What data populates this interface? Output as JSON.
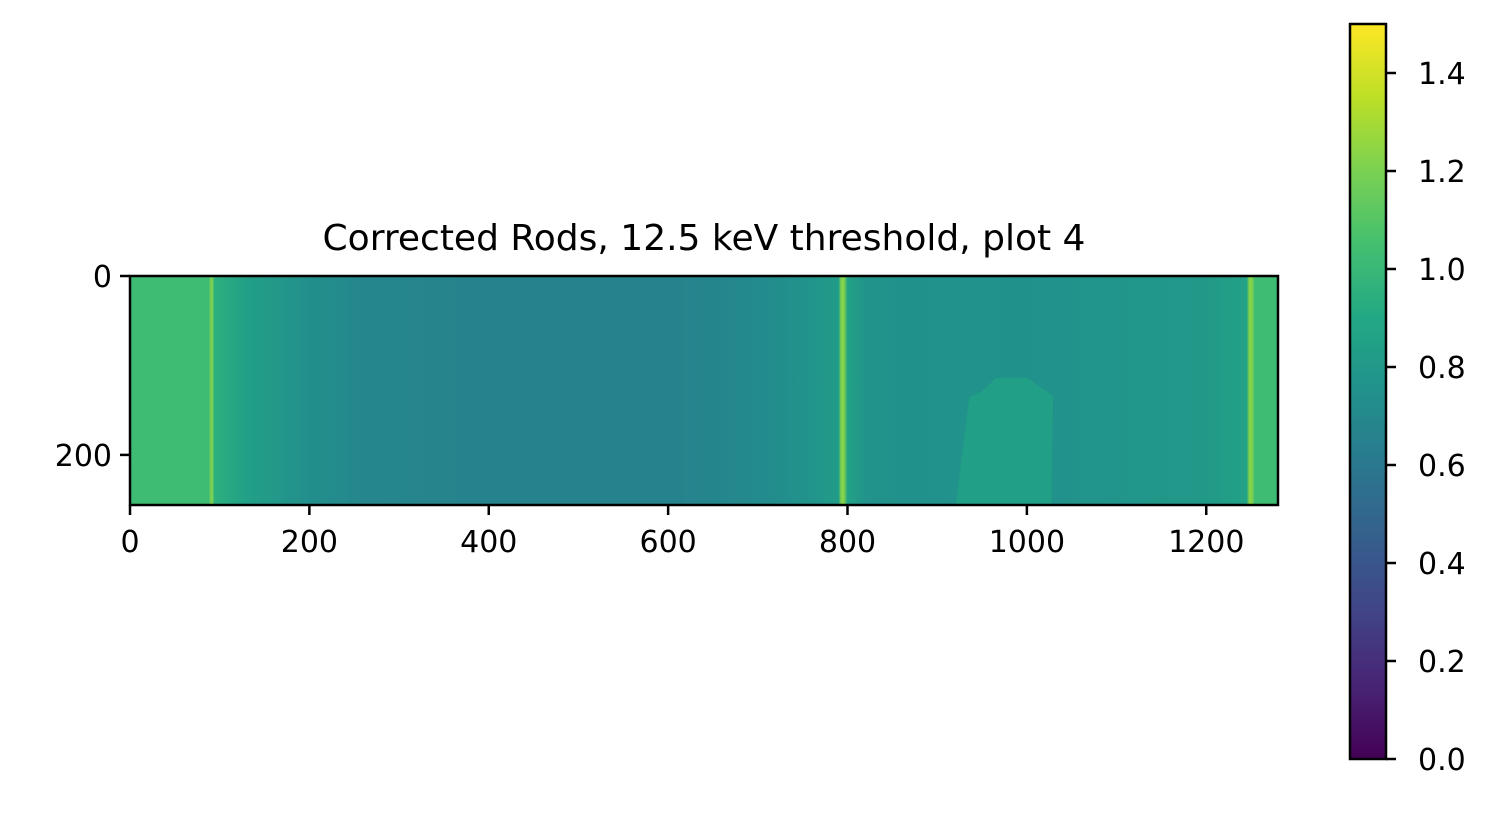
{
  "chart_data": {
    "type": "heatmap",
    "title": "Corrected Rods, 12.5 keV threshold, plot 4",
    "xlabel": "",
    "ylabel": "",
    "xlim": [
      0,
      1280
    ],
    "ylim": [
      256,
      0
    ],
    "x_ticks": [
      0,
      200,
      400,
      600,
      800,
      1000,
      1200
    ],
    "y_ticks": [
      0,
      200
    ],
    "colorbar": {
      "colormap": "viridis",
      "range": [
        0.0,
        1.5
      ],
      "ticks": [
        "0.0",
        "0.2",
        "0.4",
        "0.6",
        "0.8",
        "1.0",
        "1.2",
        "1.4"
      ],
      "tick_values": [
        0.0,
        0.2,
        0.4,
        0.6,
        0.8,
        1.0,
        1.2,
        1.4
      ]
    },
    "column_profile": [
      {
        "x": 0,
        "value": 1.03
      },
      {
        "x": 88,
        "value": 1.03
      },
      {
        "x": 90,
        "value": 1.2
      },
      {
        "x": 92,
        "value": 1.2
      },
      {
        "x": 94,
        "value": 0.95
      },
      {
        "x": 130,
        "value": 0.85
      },
      {
        "x": 200,
        "value": 0.74
      },
      {
        "x": 260,
        "value": 0.69
      },
      {
        "x": 400,
        "value": 0.66
      },
      {
        "x": 600,
        "value": 0.66
      },
      {
        "x": 700,
        "value": 0.71
      },
      {
        "x": 760,
        "value": 0.77
      },
      {
        "x": 790,
        "value": 0.82
      },
      {
        "x": 793,
        "value": 1.22
      },
      {
        "x": 796,
        "value": 1.22
      },
      {
        "x": 800,
        "value": 0.86
      },
      {
        "x": 820,
        "value": 0.76
      },
      {
        "x": 1000,
        "value": 0.75
      },
      {
        "x": 1200,
        "value": 0.8
      },
      {
        "x": 1245,
        "value": 0.86
      },
      {
        "x": 1248,
        "value": 1.22
      },
      {
        "x": 1251,
        "value": 1.22
      },
      {
        "x": 1254,
        "value": 1.03
      },
      {
        "x": 1280,
        "value": 1.03
      }
    ],
    "region": {
      "value": 0.84,
      "outline_x": [
        920,
        935,
        950,
        965,
        1000,
        1025,
        1030,
        1028
      ],
      "outline_y": [
        256,
        135,
        128,
        113,
        113,
        130,
        135,
        256
      ]
    }
  }
}
